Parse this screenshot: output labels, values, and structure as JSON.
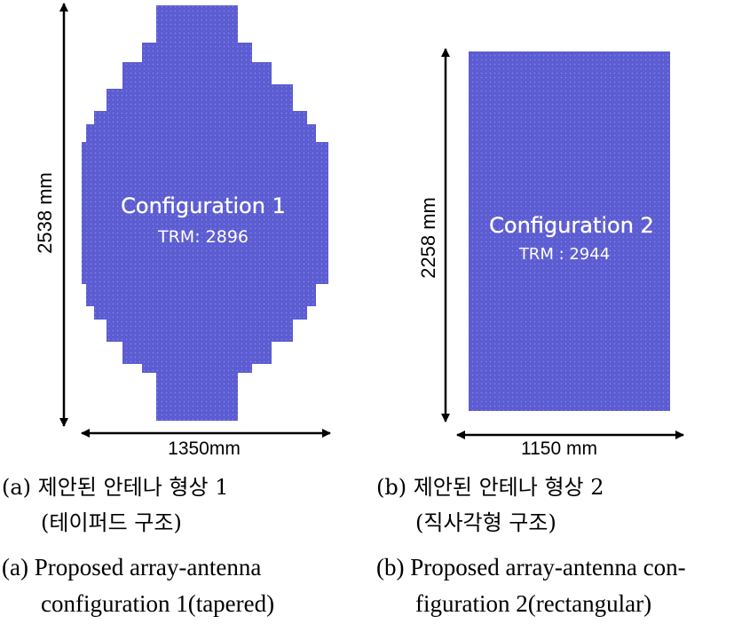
{
  "colors": {
    "array_fill": "#5d5dd4",
    "element_line": "#3b3b9c",
    "label_text": "#ffffff",
    "arrow": "#000000"
  },
  "panel_a": {
    "config_label": "Configuration 1",
    "trm_label": "TRM: 2896",
    "height_label": "2538 mm",
    "width_label": "1350mm",
    "caption_ko_line1": "(a) 제안된 안테나 형상 1",
    "caption_ko_line2": "(테이퍼드 구조)",
    "caption_en_line1": "(a) Proposed array-antenna",
    "caption_en_line2": "configuration 1(tapered)"
  },
  "panel_b": {
    "config_label": "Configuration  2",
    "trm_label": "TRM : 2944",
    "height_label": "2258 mm",
    "width_label": "1150 mm",
    "caption_ko_line1": "(b) 제안된 안테나 형상 2",
    "caption_ko_line2": "(직사각형 구조)",
    "caption_en_line1": "(b) Proposed array-antenna con-",
    "caption_en_line2": "figuration 2(rectangular)"
  }
}
